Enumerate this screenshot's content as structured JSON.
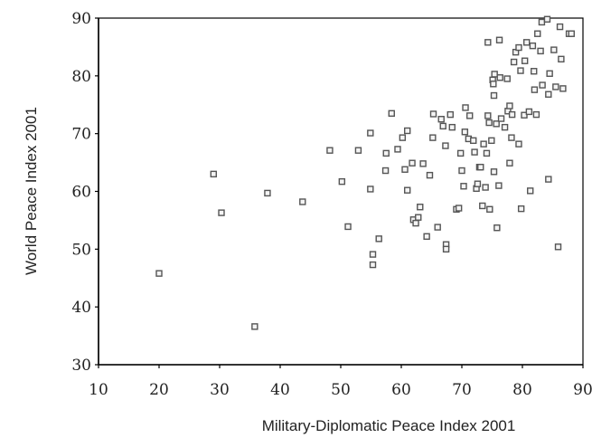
{
  "chart_data": {
    "type": "scatter",
    "title": "",
    "xlabel": "Military-Diplomatic Peace Index 2001",
    "ylabel": "World Peace Index 2001",
    "xlim": [
      10,
      90
    ],
    "ylim": [
      30,
      90
    ],
    "xticks": [
      "10",
      "20",
      "30",
      "40",
      "50",
      "60",
      "70",
      "80",
      "90"
    ],
    "yticks": [
      "30",
      "40",
      "50",
      "60",
      "70",
      "80",
      "90"
    ],
    "grid": false,
    "legend": "none",
    "marker": "hollow-square",
    "colors": {
      "marker_stroke": "#555555",
      "marker_fill": "#f4f4f4",
      "axis": "#000000"
    },
    "points": [
      [
        20,
        45.8
      ],
      [
        29,
        63
      ],
      [
        30.3,
        56.3
      ],
      [
        35.8,
        36.6
      ],
      [
        37.9,
        59.7
      ],
      [
        43.7,
        58.2
      ],
      [
        48.2,
        67.1
      ],
      [
        50.2,
        61.7
      ],
      [
        51.2,
        53.9
      ],
      [
        52.9,
        67.1
      ],
      [
        54.9,
        70.1
      ],
      [
        54.9,
        60.4
      ],
      [
        55.3,
        49.1
      ],
      [
        55.3,
        47.3
      ],
      [
        56.3,
        51.8
      ],
      [
        57.4,
        63.6
      ],
      [
        57.5,
        66.6
      ],
      [
        58.4,
        73.5
      ],
      [
        59.4,
        67.3
      ],
      [
        60.2,
        69.3
      ],
      [
        60.6,
        63.8
      ],
      [
        61,
        70.5
      ],
      [
        61,
        60.2
      ],
      [
        61.8,
        64.9
      ],
      [
        62,
        55.1
      ],
      [
        62.4,
        54.5
      ],
      [
        62.8,
        55.5
      ],
      [
        63.1,
        57.3
      ],
      [
        63.6,
        64.8
      ],
      [
        64.2,
        52.2
      ],
      [
        64.7,
        62.8
      ],
      [
        65.2,
        69.3
      ],
      [
        65.3,
        73.4
      ],
      [
        66,
        53.8
      ],
      [
        66.6,
        72.5
      ],
      [
        66.9,
        71.3
      ],
      [
        67.3,
        67.9
      ],
      [
        67.4,
        50.8
      ],
      [
        67.4,
        50
      ],
      [
        68.1,
        73.3
      ],
      [
        68.4,
        71.1
      ],
      [
        69.1,
        56.9
      ],
      [
        69.5,
        57.1
      ],
      [
        69.8,
        66.6
      ],
      [
        70,
        63.6
      ],
      [
        70.3,
        60.9
      ],
      [
        70.5,
        70.3
      ],
      [
        70.6,
        74.5
      ],
      [
        71.1,
        69.1
      ],
      [
        71.3,
        73.1
      ],
      [
        71.9,
        68.8
      ],
      [
        72.1,
        66.8
      ],
      [
        72.4,
        60.5
      ],
      [
        72.6,
        61.3
      ],
      [
        72.9,
        64.2
      ],
      [
        73.1,
        64.2
      ],
      [
        73.4,
        57.5
      ],
      [
        73.6,
        68.2
      ],
      [
        73.9,
        60.7
      ],
      [
        74.1,
        66.6
      ],
      [
        74.3,
        85.8
      ],
      [
        74.3,
        73.1
      ],
      [
        74.5,
        71.9
      ],
      [
        74.6,
        56.9
      ],
      [
        74.9,
        68.8
      ],
      [
        75.1,
        79.3
      ],
      [
        75.2,
        78.6
      ],
      [
        75.3,
        76.6
      ],
      [
        75.3,
        63.4
      ],
      [
        75.4,
        80.3
      ],
      [
        75.7,
        71.7
      ],
      [
        75.8,
        53.7
      ],
      [
        76.1,
        61
      ],
      [
        76.2,
        86.2
      ],
      [
        76.3,
        79.7
      ],
      [
        76.5,
        72.6
      ],
      [
        77.1,
        71.1
      ],
      [
        77.5,
        79.5
      ],
      [
        77.6,
        73.9
      ],
      [
        77.9,
        74.8
      ],
      [
        77.9,
        64.9
      ],
      [
        78.2,
        69.3
      ],
      [
        78.3,
        73.3
      ],
      [
        78.6,
        82.4
      ],
      [
        78.9,
        84.1
      ],
      [
        79.4,
        84.9
      ],
      [
        79.4,
        68.2
      ],
      [
        79.7,
        80.9
      ],
      [
        79.8,
        57
      ],
      [
        80.3,
        73.2
      ],
      [
        80.4,
        82.6
      ],
      [
        80.7,
        85.8
      ],
      [
        81.1,
        73.8
      ],
      [
        81.3,
        60.1
      ],
      [
        81.7,
        85.2
      ],
      [
        81.9,
        80.8
      ],
      [
        82,
        77.6
      ],
      [
        82.3,
        73.3
      ],
      [
        82.5,
        87.3
      ],
      [
        83,
        84.3
      ],
      [
        83.2,
        89.3
      ],
      [
        83.3,
        78.4
      ],
      [
        84.1,
        89.8
      ],
      [
        84.3,
        76.8
      ],
      [
        84.3,
        62.1
      ],
      [
        84.5,
        80.4
      ],
      [
        85.2,
        84.5
      ],
      [
        85.5,
        78.1
      ],
      [
        85.9,
        50.4
      ],
      [
        86.2,
        88.5
      ],
      [
        86.4,
        82.9
      ],
      [
        86.7,
        77.8
      ],
      [
        87.7,
        87.3
      ],
      [
        88.1,
        87.3
      ]
    ]
  }
}
